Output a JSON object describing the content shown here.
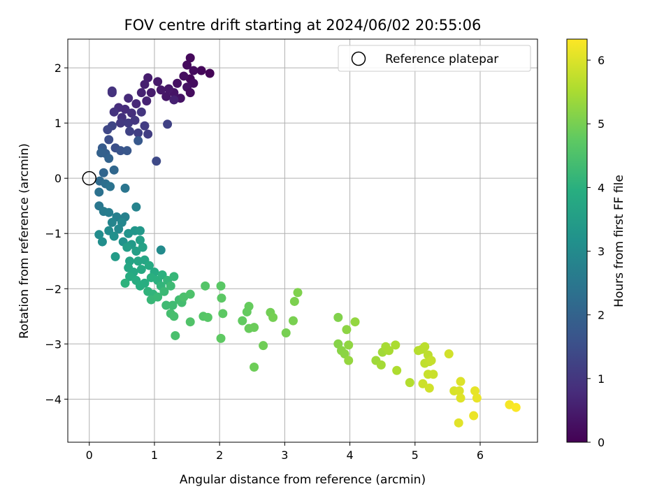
{
  "chart_data": {
    "type": "scatter",
    "title": "FOV centre drift starting at 2024/06/02 20:55:06",
    "xlabel": "Angular distance from reference (arcmin)",
    "ylabel": "Rotation from reference (arcmin)",
    "xlim": [
      -0.33,
      6.88
    ],
    "ylim": [
      -4.78,
      2.52
    ],
    "xticks": [
      0,
      1,
      2,
      3,
      4,
      5,
      6
    ],
    "yticks": [
      -4,
      -3,
      -2,
      -1,
      0,
      1,
      2
    ],
    "grid": true,
    "legend": {
      "placement": "top-right",
      "entries": [
        "Reference platepar"
      ]
    },
    "colorbar": {
      "label": "Hours from first FF file",
      "range": [
        0,
        6.33
      ],
      "ticks": [
        0,
        1,
        2,
        3,
        4,
        5,
        6
      ],
      "colormap": "viridis"
    },
    "reference_point": {
      "x": 0,
      "y": 0
    },
    "point_columns": [
      "x",
      "y",
      "hours"
    ],
    "points": [
      [
        1.55,
        2.18,
        0.15
      ],
      [
        1.72,
        1.95,
        0.1
      ],
      [
        1.85,
        1.9,
        0.05
      ],
      [
        1.6,
        1.95,
        0.2
      ],
      [
        1.5,
        2.05,
        0.18
      ],
      [
        1.55,
        1.8,
        0.12
      ],
      [
        1.45,
        1.85,
        0.25
      ],
      [
        1.6,
        1.72,
        0.22
      ],
      [
        1.5,
        1.65,
        0.3
      ],
      [
        1.35,
        1.72,
        0.28
      ],
      [
        1.3,
        1.55,
        0.35
      ],
      [
        1.4,
        1.45,
        0.32
      ],
      [
        1.55,
        1.55,
        0.2
      ],
      [
        1.22,
        1.62,
        0.4
      ],
      [
        1.18,
        1.48,
        0.38
      ],
      [
        1.05,
        1.75,
        0.45
      ],
      [
        0.9,
        1.82,
        0.5
      ],
      [
        1.1,
        1.6,
        0.42
      ],
      [
        0.95,
        1.55,
        0.48
      ],
      [
        0.85,
        1.7,
        0.55
      ],
      [
        0.8,
        1.55,
        0.6
      ],
      [
        0.88,
        1.4,
        0.62
      ],
      [
        0.72,
        1.35,
        0.7
      ],
      [
        0.6,
        1.45,
        0.75
      ],
      [
        0.55,
        1.25,
        0.8
      ],
      [
        0.65,
        1.18,
        0.85
      ],
      [
        0.45,
        1.28,
        0.82
      ],
      [
        0.5,
        1.1,
        0.9
      ],
      [
        0.38,
        1.2,
        0.95
      ],
      [
        0.35,
        1.55,
        0.88
      ],
      [
        0.35,
        1.58,
        0.92
      ],
      [
        0.48,
        1.0,
        1.05
      ],
      [
        0.6,
        1.0,
        1.1
      ],
      [
        0.7,
        1.05,
        1.0
      ],
      [
        0.8,
        1.2,
        0.98
      ],
      [
        0.85,
        0.95,
        1.12
      ],
      [
        0.9,
        0.8,
        1.15
      ],
      [
        0.75,
        0.82,
        1.2
      ],
      [
        0.62,
        0.85,
        1.25
      ],
      [
        0.35,
        0.95,
        1.3
      ],
      [
        0.28,
        0.88,
        1.35
      ],
      [
        1.3,
        1.42,
        0.58
      ],
      [
        1.2,
        0.98,
        1.22
      ],
      [
        1.03,
        0.31,
        1.4
      ],
      [
        0.3,
        0.7,
        1.5
      ],
      [
        0.4,
        0.55,
        1.55
      ],
      [
        0.48,
        0.5,
        1.62
      ],
      [
        0.58,
        0.5,
        1.7
      ],
      [
        0.75,
        0.68,
        1.75
      ],
      [
        0.2,
        0.55,
        1.8
      ],
      [
        0.25,
        0.45,
        1.9
      ],
      [
        0.18,
        0.46,
        1.95
      ],
      [
        0.3,
        0.36,
        2.0
      ],
      [
        0.22,
        0.1,
        2.05
      ],
      [
        0.38,
        0.15,
        2.1
      ],
      [
        0.16,
        -0.05,
        2.2
      ],
      [
        0.25,
        -0.1,
        2.3
      ],
      [
        0.15,
        -0.25,
        2.35
      ],
      [
        0.32,
        -0.15,
        2.4
      ],
      [
        0.55,
        -0.18,
        2.45
      ],
      [
        0.15,
        -0.5,
        2.5
      ],
      [
        0.22,
        -0.6,
        2.6
      ],
      [
        0.3,
        -0.62,
        2.65
      ],
      [
        0.42,
        -0.7,
        2.7
      ],
      [
        0.55,
        -0.7,
        2.75
      ],
      [
        0.72,
        -0.52,
        2.8
      ],
      [
        0.35,
        -0.8,
        2.85
      ],
      [
        0.5,
        -0.8,
        2.9
      ],
      [
        0.45,
        -0.92,
        2.95
      ],
      [
        0.3,
        -0.95,
        3.0
      ],
      [
        0.15,
        -1.02,
        3.05
      ],
      [
        0.2,
        -1.15,
        3.1
      ],
      [
        0.38,
        -1.05,
        3.15
      ],
      [
        0.52,
        -1.15,
        3.2
      ],
      [
        0.6,
        -1.0,
        3.25
      ],
      [
        0.7,
        -0.95,
        3.3
      ],
      [
        0.78,
        -0.95,
        3.35
      ],
      [
        0.65,
        -1.2,
        3.4
      ],
      [
        0.4,
        -1.42,
        3.45
      ],
      [
        0.58,
        -1.25,
        3.5
      ],
      [
        0.72,
        -1.32,
        3.55
      ],
      [
        0.82,
        -1.25,
        3.6
      ],
      [
        0.78,
        -1.12,
        3.55
      ],
      [
        1.1,
        -1.3,
        3.0
      ],
      [
        0.62,
        -1.5,
        3.65
      ],
      [
        0.75,
        -1.5,
        3.7
      ],
      [
        0.85,
        -1.48,
        3.72
      ],
      [
        0.6,
        -1.62,
        3.75
      ],
      [
        0.68,
        -1.7,
        3.78
      ],
      [
        0.8,
        -1.65,
        3.8
      ],
      [
        0.92,
        -1.58,
        3.82
      ],
      [
        1.0,
        -1.7,
        3.85
      ],
      [
        0.62,
        -1.78,
        3.88
      ],
      [
        0.72,
        -1.85,
        3.9
      ],
      [
        0.85,
        -1.9,
        3.92
      ],
      [
        0.78,
        -1.95,
        3.95
      ],
      [
        0.95,
        -1.8,
        3.98
      ],
      [
        1.05,
        -1.85,
        4.0
      ],
      [
        1.12,
        -1.75,
        4.02
      ],
      [
        0.55,
        -1.9,
        4.05
      ],
      [
        0.9,
        -2.05,
        4.08
      ],
      [
        0.98,
        -2.1,
        4.1
      ],
      [
        1.1,
        -1.95,
        4.12
      ],
      [
        1.2,
        -1.85,
        4.15
      ],
      [
        1.3,
        -1.78,
        4.18
      ],
      [
        0.95,
        -2.2,
        4.2
      ],
      [
        1.05,
        -2.15,
        4.22
      ],
      [
        1.15,
        -2.05,
        4.25
      ],
      [
        1.25,
        -1.95,
        4.28
      ],
      [
        1.18,
        -2.3,
        4.3
      ],
      [
        1.28,
        -2.3,
        4.32
      ],
      [
        1.38,
        -2.2,
        4.35
      ],
      [
        1.42,
        -2.25,
        4.38
      ],
      [
        1.25,
        -2.45,
        4.4
      ],
      [
        1.3,
        -2.5,
        4.42
      ],
      [
        1.32,
        -2.85,
        4.45
      ],
      [
        1.45,
        -2.15,
        4.48
      ],
      [
        1.55,
        -2.1,
        4.5
      ],
      [
        1.55,
        -2.6,
        4.55
      ],
      [
        1.78,
        -1.95,
        4.6
      ],
      [
        1.75,
        -2.5,
        4.62
      ],
      [
        1.82,
        -2.52,
        4.65
      ],
      [
        2.02,
        -1.95,
        4.68
      ],
      [
        2.03,
        -2.17,
        4.7
      ],
      [
        2.05,
        -2.45,
        4.72
      ],
      [
        2.02,
        -2.9,
        4.75
      ],
      [
        2.35,
        -2.58,
        4.78
      ],
      [
        2.42,
        -2.42,
        4.8
      ],
      [
        2.45,
        -2.32,
        4.82
      ],
      [
        2.45,
        -2.72,
        4.85
      ],
      [
        2.53,
        -2.7,
        4.88
      ],
      [
        2.53,
        -3.42,
        4.9
      ],
      [
        2.67,
        -3.03,
        4.92
      ],
      [
        2.78,
        -2.43,
        4.95
      ],
      [
        2.82,
        -2.52,
        4.98
      ],
      [
        3.02,
        -2.8,
        5.0
      ],
      [
        3.13,
        -2.58,
        5.02
      ],
      [
        3.15,
        -2.23,
        5.05
      ],
      [
        3.2,
        -2.07,
        5.08
      ],
      [
        3.82,
        -2.52,
        5.1
      ],
      [
        3.82,
        -3.0,
        5.15
      ],
      [
        3.87,
        -3.12,
        5.18
      ],
      [
        3.92,
        -3.18,
        5.2
      ],
      [
        3.95,
        -2.74,
        5.22
      ],
      [
        3.98,
        -3.02,
        5.25
      ],
      [
        3.98,
        -3.3,
        5.3
      ],
      [
        4.08,
        -2.6,
        5.28
      ],
      [
        4.4,
        -3.3,
        5.4
      ],
      [
        4.48,
        -3.38,
        5.45
      ],
      [
        4.5,
        -3.15,
        5.42
      ],
      [
        4.55,
        -3.05,
        5.48
      ],
      [
        4.6,
        -3.12,
        5.5
      ],
      [
        4.7,
        -3.02,
        5.52
      ],
      [
        4.72,
        -3.48,
        5.55
      ],
      [
        4.92,
        -3.7,
        5.6
      ],
      [
        5.05,
        -3.12,
        5.62
      ],
      [
        5.1,
        -3.1,
        5.65
      ],
      [
        5.15,
        -3.05,
        5.68
      ],
      [
        5.2,
        -3.2,
        5.7
      ],
      [
        5.15,
        -3.35,
        5.72
      ],
      [
        5.22,
        -3.32,
        5.75
      ],
      [
        5.25,
        -3.3,
        5.78
      ],
      [
        5.2,
        -3.55,
        5.8
      ],
      [
        5.28,
        -3.55,
        5.82
      ],
      [
        5.12,
        -3.72,
        5.85
      ],
      [
        5.22,
        -3.8,
        5.88
      ],
      [
        5.52,
        -3.18,
        5.9
      ],
      [
        5.6,
        -3.85,
        5.95
      ],
      [
        5.68,
        -3.85,
        5.98
      ],
      [
        5.7,
        -3.68,
        6.0
      ],
      [
        5.7,
        -3.98,
        6.02
      ],
      [
        5.67,
        -4.43,
        6.05
      ],
      [
        5.92,
        -3.85,
        6.1
      ],
      [
        5.95,
        -3.98,
        6.12
      ],
      [
        5.9,
        -4.3,
        6.15
      ],
      [
        6.45,
        -4.1,
        6.25
      ],
      [
        6.55,
        -4.15,
        6.3
      ]
    ]
  }
}
